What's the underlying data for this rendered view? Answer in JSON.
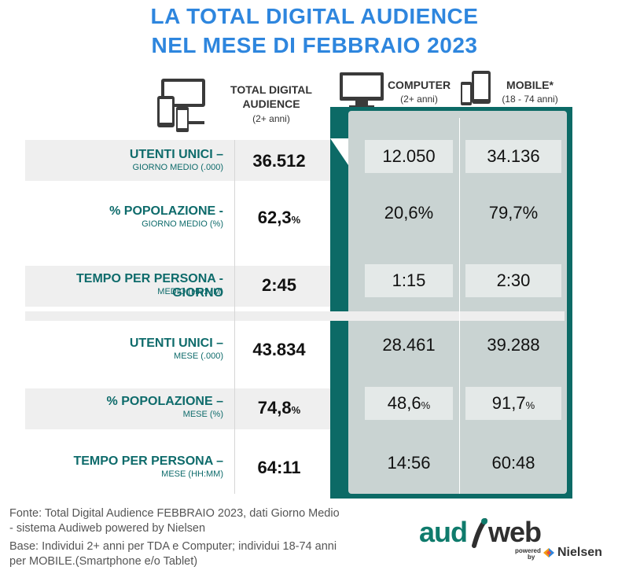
{
  "title_line1": "LA TOTAL DIGITAL AUDIENCE",
  "title_line2": "NEL MESE DI FEBBRAIO  2023",
  "headers": {
    "tda_label_1": "TOTAL DIGITAL",
    "tda_label_2": "AUDIENCE",
    "tda_sub": "(2+ anni)",
    "computer_label": "COMPUTER",
    "computer_sub": "(2+ anni)",
    "mobile_label": "MOBILE*",
    "mobile_sub": "(18 - 74 anni)"
  },
  "chart_data": {
    "type": "table",
    "columns": [
      "TOTAL DIGITAL AUDIENCE (2+ anni)",
      "COMPUTER (2+ anni)",
      "MOBILE* (18 - 74 anni)"
    ],
    "rows": [
      {
        "label": "UTENTI UNICI –",
        "sublabel": "GIORNO MEDIO (.000)",
        "tda": "36.512",
        "tda_unit": "",
        "computer": "12.050",
        "computer_unit": "",
        "mobile": "34.136",
        "mobile_unit": ""
      },
      {
        "label": "% POPOLAZIONE -",
        "sublabel": "GIORNO MEDIO (%)",
        "tda": "62,3",
        "tda_unit": "%",
        "computer": "20,6",
        "computer_unit": "%",
        "mobile": "79,7",
        "mobile_unit": "%"
      },
      {
        "label": "TEMPO PER PERSONA - GIORNO",
        "sublabel": "MEDIO (HH:MM)",
        "tda": "2:45",
        "tda_unit": "",
        "computer": "1:15",
        "computer_unit": "",
        "mobile": "2:30",
        "mobile_unit": ""
      },
      {
        "label": "UTENTI UNICI –",
        "sublabel": "MESE (.000)",
        "tda": "43.834",
        "tda_unit": "",
        "computer": "28.461",
        "computer_unit": "",
        "mobile": "39.288",
        "mobile_unit": ""
      },
      {
        "label": "% POPOLAZIONE –",
        "sublabel": "MESE (%)",
        "tda": "74,8",
        "tda_unit": "%",
        "computer": "48,6",
        "computer_unit": "%",
        "mobile": "91,7",
        "mobile_unit": "%"
      },
      {
        "label": "TEMPO PER PERSONA –",
        "sublabel": "MESE (HH:MM)",
        "tda": "64:11",
        "tda_unit": "",
        "computer": "14:56",
        "computer_unit": "",
        "mobile": "60:48",
        "mobile_unit": ""
      }
    ]
  },
  "footer": {
    "line1": "Fonte: Total Digital Audience FEBBRAIO  2023, dati Giorno Medio",
    "line2": "- sistema Audiweb powered by Nielsen",
    "line3": "Base:  Individui 2+ anni per TDA e Computer; individui 18-74 anni",
    "line4": "per MOBILE.(Smartphone e/o Tablet)"
  },
  "logo": {
    "audi": "aud",
    "web": "web",
    "powered": "powered",
    "by": "by",
    "nielsen": "Nielsen"
  },
  "colors": {
    "title": "#2e86de",
    "teal": "#0c6a66",
    "label": "#0e6b6b"
  }
}
